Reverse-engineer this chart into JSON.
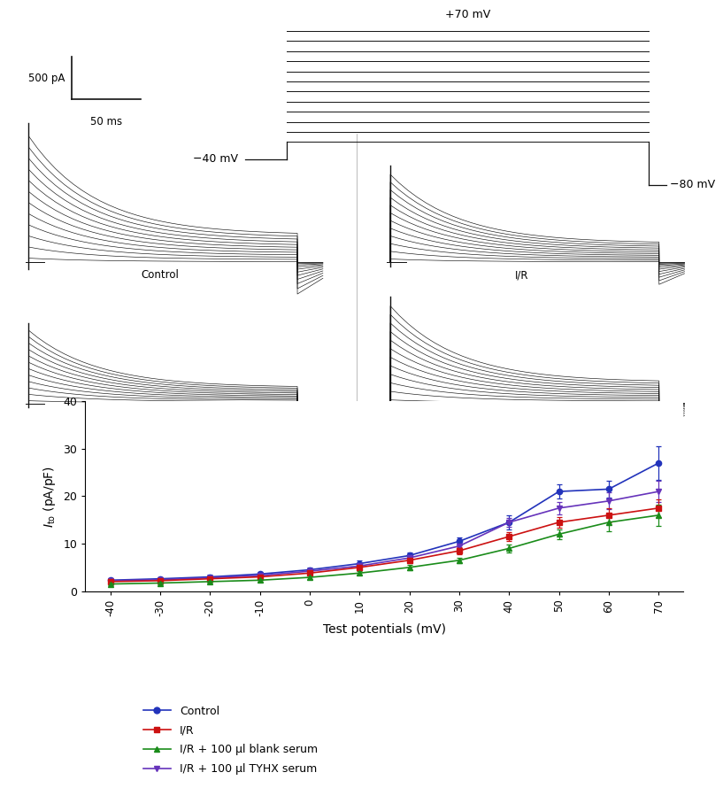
{
  "x_values": [
    -40,
    -30,
    -20,
    -10,
    0,
    10,
    20,
    30,
    40,
    50,
    60,
    70
  ],
  "control_y": [
    2.3,
    2.6,
    3.0,
    3.6,
    4.5,
    5.8,
    7.5,
    10.5,
    14.5,
    21.0,
    21.5,
    27.0
  ],
  "control_err": [
    0.3,
    0.3,
    0.4,
    0.4,
    0.5,
    0.6,
    0.7,
    0.9,
    1.5,
    1.5,
    1.8,
    3.5
  ],
  "ir_y": [
    2.0,
    2.2,
    2.6,
    3.0,
    3.8,
    5.0,
    6.5,
    8.5,
    11.5,
    14.5,
    16.0,
    17.5
  ],
  "ir_err": [
    0.2,
    0.25,
    0.3,
    0.35,
    0.4,
    0.5,
    0.6,
    0.8,
    1.0,
    1.2,
    1.5,
    1.8
  ],
  "blank_y": [
    1.5,
    1.7,
    2.0,
    2.3,
    2.9,
    3.8,
    5.0,
    6.5,
    9.0,
    12.0,
    14.5,
    16.0
  ],
  "blank_err": [
    0.2,
    0.2,
    0.25,
    0.3,
    0.35,
    0.4,
    0.5,
    0.6,
    0.8,
    1.0,
    1.8,
    2.2
  ],
  "tyhx_y": [
    2.2,
    2.4,
    2.8,
    3.3,
    4.2,
    5.3,
    7.0,
    9.5,
    14.5,
    17.5,
    19.0,
    21.0
  ],
  "tyhx_err": [
    0.25,
    0.3,
    0.3,
    0.35,
    0.4,
    0.5,
    0.6,
    0.8,
    1.0,
    1.3,
    1.8,
    2.2
  ],
  "control_color": "#2233bb",
  "ir_color": "#cc1111",
  "blank_color": "#1a8c1a",
  "tyhx_color": "#6633bb",
  "xlabel": "Test potentials (mV)",
  "ylabel": "$\\mathit{I}_{\\mathrm{to}}$ (pA/pF)",
  "ylim": [
    0,
    40
  ],
  "yticks": [
    0,
    10,
    20,
    30,
    40
  ],
  "scale_bar_pA": "500 pA",
  "scale_bar_ms": "50 ms",
  "voltage_top": "+70 mV",
  "voltage_left": "−40 mV",
  "voltage_bottom": "−80 mV",
  "label_control": "Control",
  "label_ir": "I/R",
  "label_blank": "I/R + 100 μl blank serum",
  "label_tyhx": "I/R + 100 μl TYHX serum",
  "trace_color": "#111111",
  "background_color": "#ffffff",
  "n_traces": 12
}
